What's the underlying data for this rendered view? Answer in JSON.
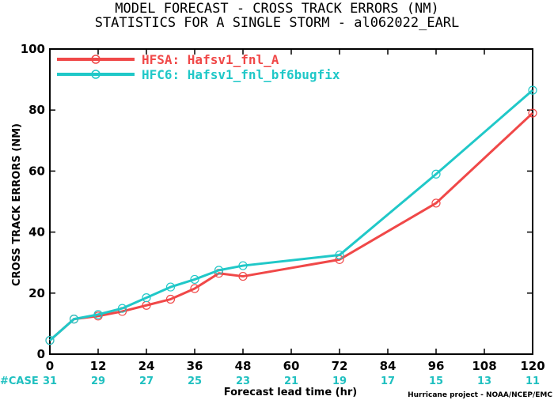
{
  "title_line1": "MODEL FORECAST - CROSS TRACK ERRORS (NM)",
  "title_line2": "STATISTICS FOR A SINGLE STORM - al062022_EARL",
  "credit": "Hurricane project - NOAA/NCEP/EMC",
  "case_label": "#CASE",
  "case_color": "#20c0c0",
  "chart_data": {
    "type": "line",
    "xlabel": "Forecast lead time (hr)",
    "ylabel": "CROSS TRACK ERRORS (NM)",
    "xlim": [
      0,
      120
    ],
    "ylim": [
      0,
      100
    ],
    "xticks": [
      0,
      12,
      24,
      36,
      48,
      60,
      72,
      84,
      96,
      108,
      120
    ],
    "yticks": [
      0,
      20,
      40,
      60,
      80,
      100
    ],
    "grid": false,
    "legend": "top-left",
    "case_counts": [
      31,
      29,
      27,
      25,
      23,
      21,
      19,
      17,
      15,
      13,
      11
    ],
    "series": [
      {
        "name": "HFSA: Hafsv1_fnl_A",
        "color": "#f04848",
        "x": [
          0,
          6,
          12,
          18,
          24,
          30,
          36,
          42,
          48,
          72,
          96,
          120
        ],
        "y": [
          4.5,
          11.5,
          12.5,
          14,
          16,
          18,
          21.5,
          26.5,
          25.5,
          31,
          49.5,
          79
        ]
      },
      {
        "name": "HFC6: Hafsv1_fnl_bf6bugfix",
        "color": "#20c8c8",
        "x": [
          0,
          6,
          12,
          18,
          24,
          30,
          36,
          42,
          48,
          72,
          96,
          120
        ],
        "y": [
          4.5,
          11.5,
          13,
          15,
          18.5,
          22,
          24.5,
          27.5,
          29,
          32.5,
          59,
          86.5
        ]
      }
    ]
  }
}
